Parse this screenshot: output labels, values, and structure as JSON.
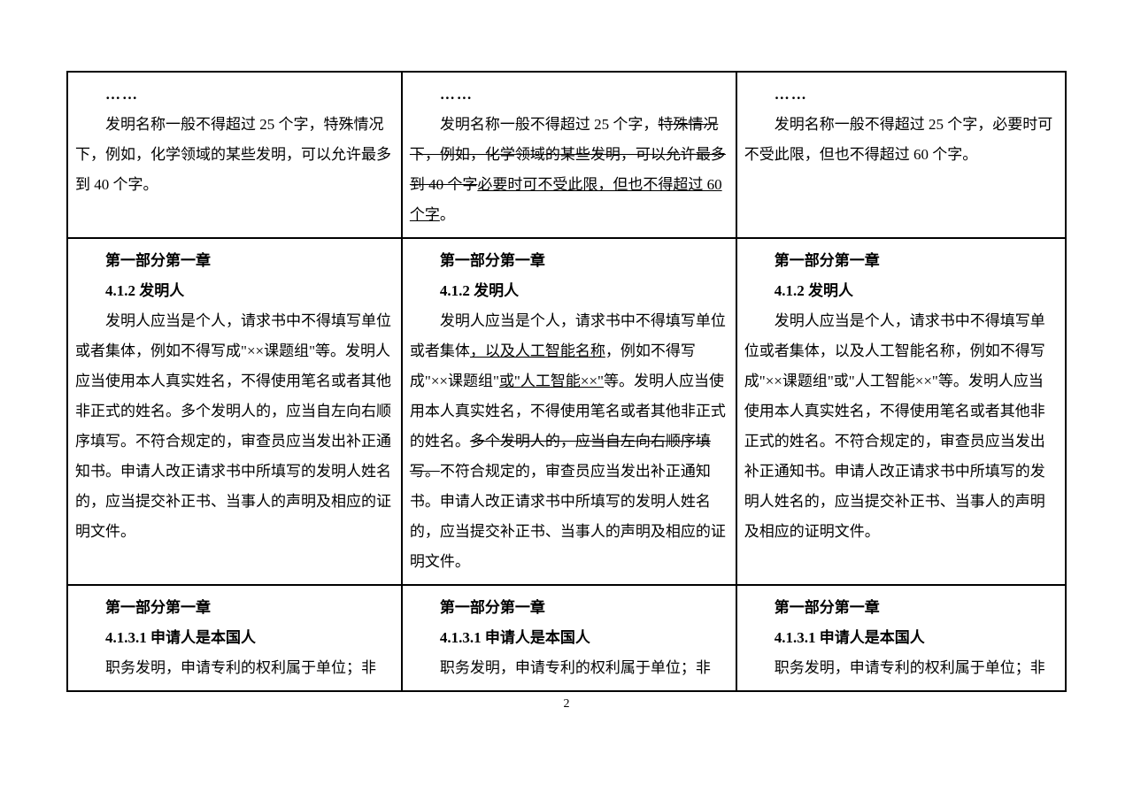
{
  "page_number": "2",
  "table": {
    "border_color": "#000000",
    "border_width": 2,
    "rows": [
      {
        "cells": [
          {
            "paragraphs": [
              {
                "segments": [
                  {
                    "text": "……",
                    "class": "ellipsis"
                  }
                ],
                "class": "ellipsis"
              },
              {
                "segments": [
                  {
                    "text": "发明名称一般不得超过 25 个字，特殊情况下，例如，化学领域的某些发明，可以允许最多到 40 个字。"
                  }
                ],
                "class": "indent"
              }
            ]
          },
          {
            "paragraphs": [
              {
                "segments": [
                  {
                    "text": "……",
                    "class": "ellipsis"
                  }
                ],
                "class": "ellipsis"
              },
              {
                "segments": [
                  {
                    "text": "发明名称一般不得超过 25 个字，"
                  },
                  {
                    "text": "特殊情况下，例如，化学领域的某些发明，可以允许最多到 40 个字",
                    "class": "strike"
                  },
                  {
                    "text": "必要时可不受此限，但也不得超过 60 个字",
                    "class": "underline"
                  },
                  {
                    "text": "。"
                  }
                ],
                "class": "indent"
              }
            ]
          },
          {
            "paragraphs": [
              {
                "segments": [
                  {
                    "text": "……",
                    "class": "ellipsis"
                  }
                ],
                "class": "ellipsis"
              },
              {
                "segments": [
                  {
                    "text": "发明名称一般不得超过 25 个字，必要时可不受此限，但也不得超过 60 个字。"
                  }
                ],
                "class": "indent"
              }
            ]
          }
        ]
      },
      {
        "cells": [
          {
            "paragraphs": [
              {
                "segments": [
                  {
                    "text": "第一部分第一章",
                    "class": "bold"
                  }
                ],
                "class": "indent bold"
              },
              {
                "segments": [
                  {
                    "text": "4.1.2 发明人",
                    "class": "bold"
                  }
                ],
                "class": "indent bold"
              },
              {
                "segments": [
                  {
                    "text": "发明人应当是个人，请求书中不得填写单位或者集体，例如不得写成\"××课题组\"等。发明人应当使用本人真实姓名，不得使用笔名或者其他非正式的姓名。多个发明人的，应当自左向右顺序填写。不符合规定的，审查员应当发出补正通知书。申请人改正请求书中所填写的发明人姓名的，应当提交补正书、当事人的声明及相应的证明文件。"
                  }
                ],
                "class": "indent"
              }
            ]
          },
          {
            "paragraphs": [
              {
                "segments": [
                  {
                    "text": "第一部分第一章",
                    "class": "bold"
                  }
                ],
                "class": "indent bold"
              },
              {
                "segments": [
                  {
                    "text": "4.1.2 发明人",
                    "class": "bold"
                  }
                ],
                "class": "indent bold"
              },
              {
                "segments": [
                  {
                    "text": "发明人应当是个人，请求书中不得填写单位或者集体"
                  },
                  {
                    "text": "，以及人工智能名称",
                    "class": "underline"
                  },
                  {
                    "text": "，例如不得写成\"××课题组\""
                  },
                  {
                    "text": "或\"人工智能××\"",
                    "class": "underline"
                  },
                  {
                    "text": "等。发明人应当使用本人真实姓名，不得使用笔名或者其他非正式的姓名。"
                  },
                  {
                    "text": "多个发明人的，应当自左向右顺序填写。",
                    "class": "strike"
                  },
                  {
                    "text": "不符合规定的，审查员应当发出补正通知书。申请人改正请求书中所填写的发明人姓名的，应当提交补正书、当事人的声明及相应的证明文件。"
                  }
                ],
                "class": "indent"
              }
            ]
          },
          {
            "paragraphs": [
              {
                "segments": [
                  {
                    "text": "第一部分第一章",
                    "class": "bold"
                  }
                ],
                "class": "indent bold"
              },
              {
                "segments": [
                  {
                    "text": "4.1.2 发明人",
                    "class": "bold"
                  }
                ],
                "class": "indent bold"
              },
              {
                "segments": [
                  {
                    "text": "发明人应当是个人，请求书中不得填写单位或者集体，以及人工智能名称，例如不得写成\"××课题组\"或\"人工智能××\"等。发明人应当使用本人真实姓名，不得使用笔名或者其他非正式的姓名。不符合规定的，审查员应当发出补正通知书。申请人改正请求书中所填写的发明人姓名的，应当提交补正书、当事人的声明及相应的证明文件。"
                  }
                ],
                "class": "indent"
              }
            ]
          }
        ]
      },
      {
        "cells": [
          {
            "paragraphs": [
              {
                "segments": [
                  {
                    "text": "第一部分第一章",
                    "class": "bold"
                  }
                ],
                "class": "indent bold"
              },
              {
                "segments": [
                  {
                    "text": "4.1.3.1 申请人是本国人",
                    "class": "bold"
                  }
                ],
                "class": "indent bold"
              },
              {
                "segments": [
                  {
                    "text": "职务发明，申请专利的权利属于单位；非"
                  }
                ],
                "class": "indent"
              }
            ]
          },
          {
            "paragraphs": [
              {
                "segments": [
                  {
                    "text": "第一部分第一章",
                    "class": "bold"
                  }
                ],
                "class": "indent bold"
              },
              {
                "segments": [
                  {
                    "text": "4.1.3.1 申请人是本国人",
                    "class": "bold"
                  }
                ],
                "class": "indent bold"
              },
              {
                "segments": [
                  {
                    "text": "职务发明，申请专利的权利属于单位；非"
                  }
                ],
                "class": "indent"
              }
            ]
          },
          {
            "paragraphs": [
              {
                "segments": [
                  {
                    "text": "第一部分第一章",
                    "class": "bold"
                  }
                ],
                "class": "indent bold"
              },
              {
                "segments": [
                  {
                    "text": "4.1.3.1 申请人是本国人",
                    "class": "bold"
                  }
                ],
                "class": "indent bold"
              },
              {
                "segments": [
                  {
                    "text": "职务发明，申请专利的权利属于单位；非"
                  }
                ],
                "class": "indent"
              }
            ]
          }
        ]
      }
    ]
  }
}
